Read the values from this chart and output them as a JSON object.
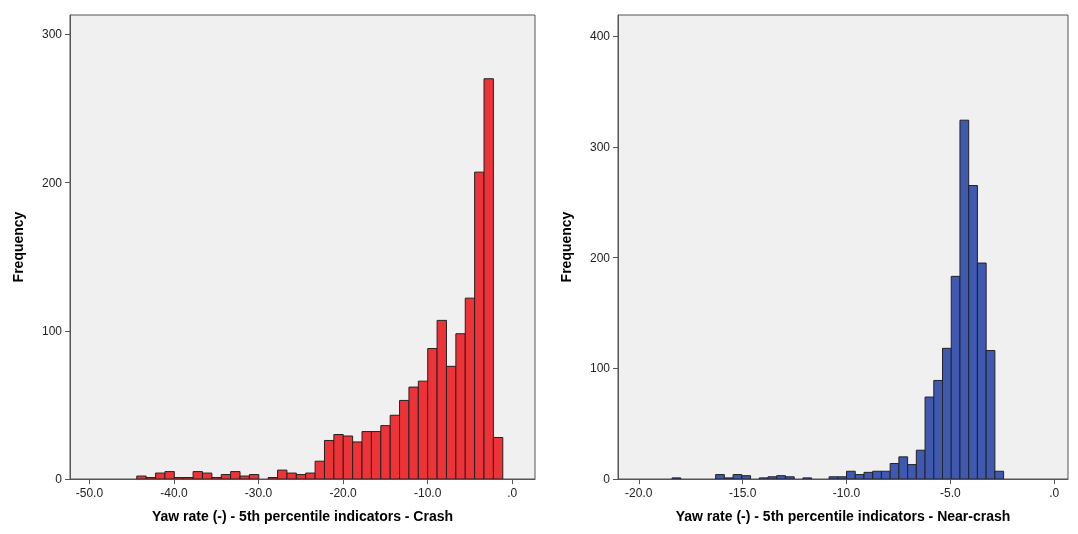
{
  "chart_data": [
    {
      "type": "histogram",
      "xlabel": "Yaw rate (-) - 5th percentile indicators - Crash",
      "ylabel": "Frequency",
      "color": "#ee3338",
      "bins": [
        -44.4,
        -43.29,
        -42.18,
        -41.07,
        -39.96,
        -38.85,
        -37.74,
        -36.63,
        -35.52,
        -34.41,
        -33.3,
        -32.19,
        -31.08,
        -29.97,
        -28.86,
        -27.75,
        -26.64,
        -25.53,
        -24.42,
        -23.31,
        -22.2,
        -21.09,
        -19.98,
        -18.87,
        -17.76,
        -16.65,
        -15.54,
        -14.43,
        -13.32,
        -12.21,
        -11.1,
        -9.99,
        -8.88,
        -7.77,
        -6.66,
        -5.55,
        -4.44,
        -3.33,
        -2.22,
        -1.11
      ],
      "values": [
        2,
        1,
        4,
        5,
        1,
        1,
        5,
        4,
        1,
        3,
        5,
        2,
        3,
        0,
        1,
        6,
        4,
        3,
        4,
        12,
        26,
        30,
        29,
        25,
        32,
        32,
        36,
        43,
        53,
        62,
        66,
        88,
        107,
        76,
        98,
        122,
        207,
        270,
        28
      ],
      "xlim": [
        -52.3,
        2.7
      ],
      "ylim": [
        0,
        313
      ],
      "xticks": [
        {
          "value": -50,
          "label": "-50.0"
        },
        {
          "value": -40,
          "label": "-40.0"
        },
        {
          "value": -30,
          "label": "-30.0"
        },
        {
          "value": -20,
          "label": "-20.0"
        },
        {
          "value": -10,
          "label": "-10.0"
        },
        {
          "value": 0,
          "label": ".0"
        }
      ],
      "yticks": [
        0,
        100,
        200,
        300
      ],
      "grid": false
    },
    {
      "type": "histogram",
      "xlabel": "Yaw rate (-) - 5th percentile indicators - Near-crash",
      "ylabel": "Frequency",
      "color": "#3f58b0",
      "bins": [
        -18.4,
        -17.98,
        -17.56,
        -17.14,
        -16.72,
        -16.3,
        -15.88,
        -15.46,
        -15.04,
        -14.62,
        -14.2,
        -13.78,
        -13.36,
        -12.94,
        -12.52,
        -12.1,
        -11.68,
        -11.26,
        -10.84,
        -10.42,
        -10.0,
        -9.58,
        -9.16,
        -8.74,
        -8.32,
        -7.9,
        -7.48,
        -7.06,
        -6.64,
        -6.22,
        -5.8,
        -5.38,
        -4.96,
        -4.54,
        -4.12,
        -3.7,
        -3.28,
        -2.86,
        -2.44
      ],
      "values": [
        1,
        0,
        0,
        0,
        0,
        4,
        1,
        4,
        3,
        0,
        1,
        2,
        3,
        2,
        0,
        1,
        0,
        0,
        2,
        2,
        7,
        4,
        6,
        7,
        7,
        14,
        20,
        13,
        26,
        74,
        89,
        118,
        183,
        324,
        265,
        195,
        116,
        7
      ],
      "xlim": [
        -21.0,
        0.66
      ],
      "ylim": [
        0,
        419
      ],
      "xticks": [
        {
          "value": -20,
          "label": "-20.0"
        },
        {
          "value": -15,
          "label": "-15.0"
        },
        {
          "value": -10,
          "label": "-10.0"
        },
        {
          "value": -5,
          "label": "-5.0"
        },
        {
          "value": 0,
          "label": ".0"
        }
      ],
      "yticks": [
        0,
        100,
        200,
        300,
        400
      ],
      "grid": false
    }
  ]
}
